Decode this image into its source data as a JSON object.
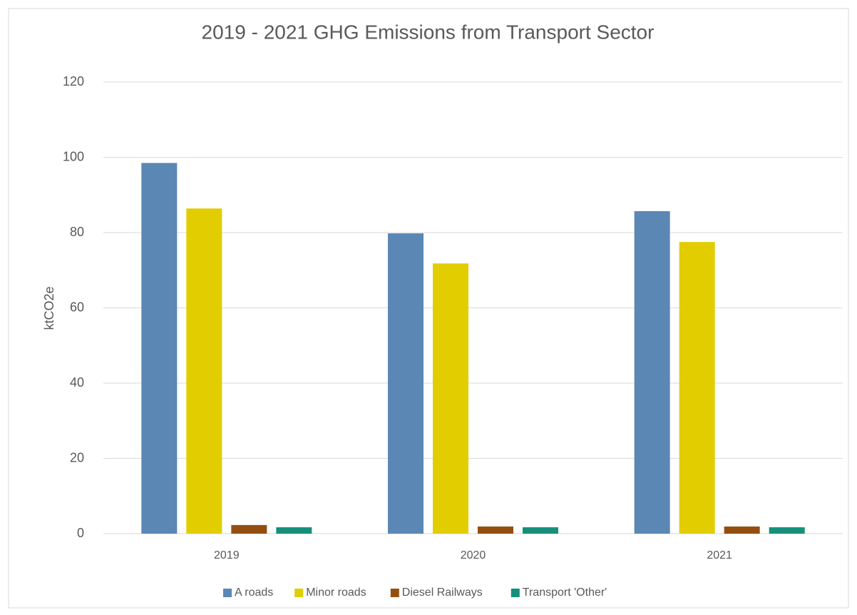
{
  "chart_data": {
    "type": "bar",
    "title": "2019 - 2021 GHG Emissions from Transport Sector",
    "y_label": "ktCO2e",
    "categories": [
      "2019",
      "2020",
      "2021"
    ],
    "series": [
      {
        "name": "A roads",
        "color": "#5b87b5",
        "values": [
          98.5,
          79.8,
          85.7
        ]
      },
      {
        "name": "Minor roads",
        "color": "#e2cd00",
        "values": [
          86.4,
          71.8,
          77.5
        ]
      },
      {
        "name": "Diesel Railways",
        "color": "#944f10",
        "values": [
          2.3,
          1.9,
          1.9
        ]
      },
      {
        "name": "Transport 'Other'",
        "color": "#16907a",
        "values": [
          1.7,
          1.7,
          1.7
        ]
      }
    ],
    "ylim": [
      0,
      120
    ],
    "yticks": [
      0,
      20,
      40,
      60,
      80,
      100,
      120
    ],
    "grid": true,
    "legend": "bottom"
  }
}
